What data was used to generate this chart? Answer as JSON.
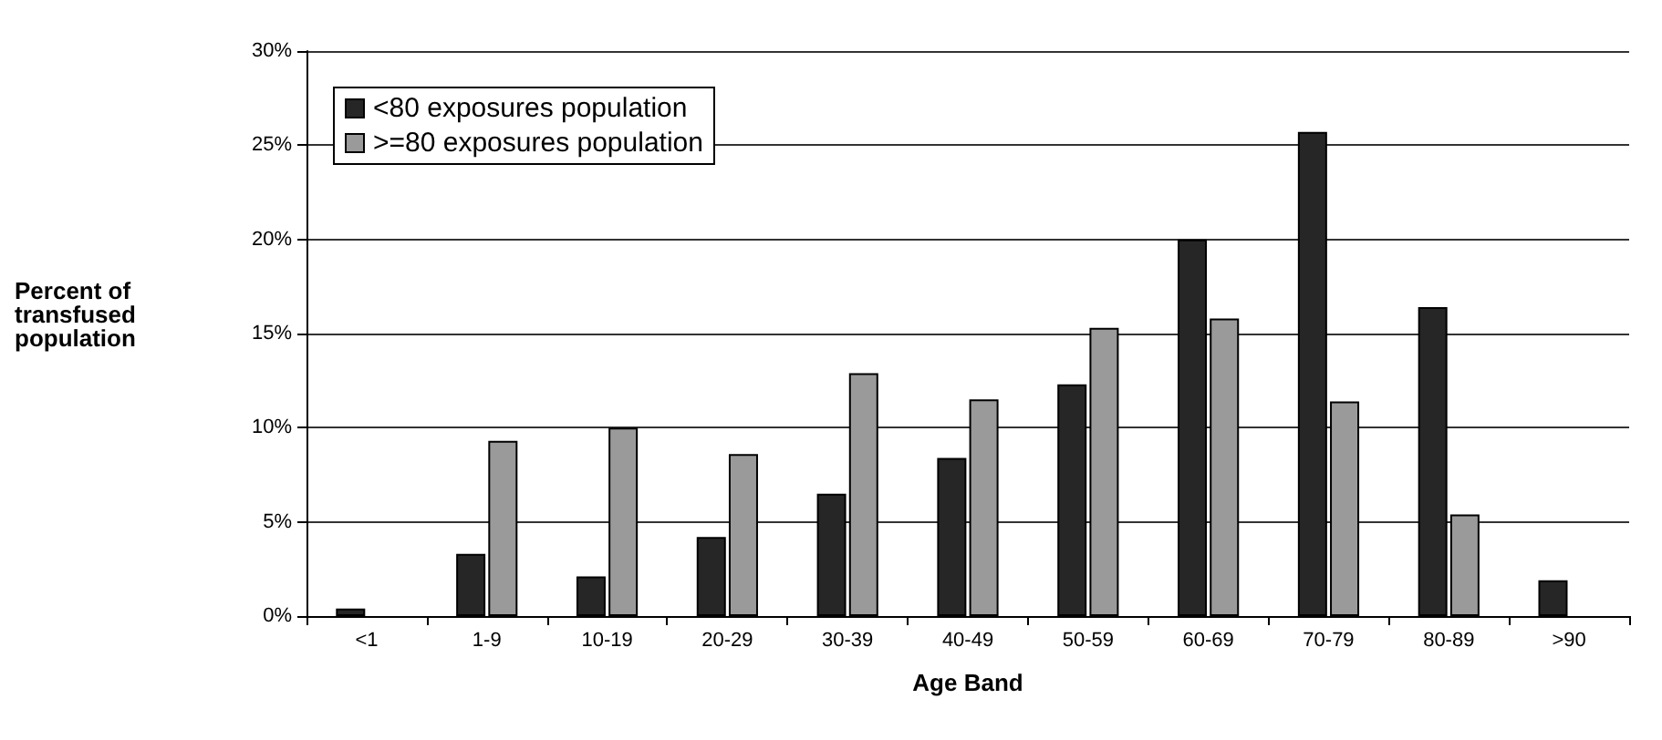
{
  "chart_data": {
    "type": "bar",
    "xlabel": "Age Band",
    "ylabel": "Percent of\ntransfused\npopulation",
    "categories": [
      "<1",
      "1-9",
      "10-19",
      "20-29",
      "30-39",
      "40-49",
      "50-59",
      "60-69",
      "70-79",
      "80-89",
      ">90"
    ],
    "series": [
      {
        "name": "<80 exposures population",
        "color": "#262626",
        "values": [
          0.4,
          3.3,
          2.1,
          4.2,
          6.5,
          8.4,
          12.3,
          20.0,
          25.7,
          16.4,
          1.9
        ]
      },
      {
        "name": ">=80 exposures population",
        "color": "#9a9a9a",
        "values": [
          null,
          9.3,
          10.0,
          8.6,
          12.9,
          11.5,
          15.3,
          15.8,
          11.4,
          5.4,
          null
        ]
      }
    ],
    "ylim": [
      0,
      30
    ],
    "yticks": [
      {
        "value": 0,
        "label": "0%"
      },
      {
        "value": 5,
        "label": "5%"
      },
      {
        "value": 10,
        "label": "10%"
      },
      {
        "value": 15,
        "label": "15%"
      },
      {
        "value": 20,
        "label": "20%"
      },
      {
        "value": 25,
        "label": "25%"
      },
      {
        "value": 30,
        "label": "30%"
      }
    ],
    "grid": "y",
    "legend": "top left"
  }
}
